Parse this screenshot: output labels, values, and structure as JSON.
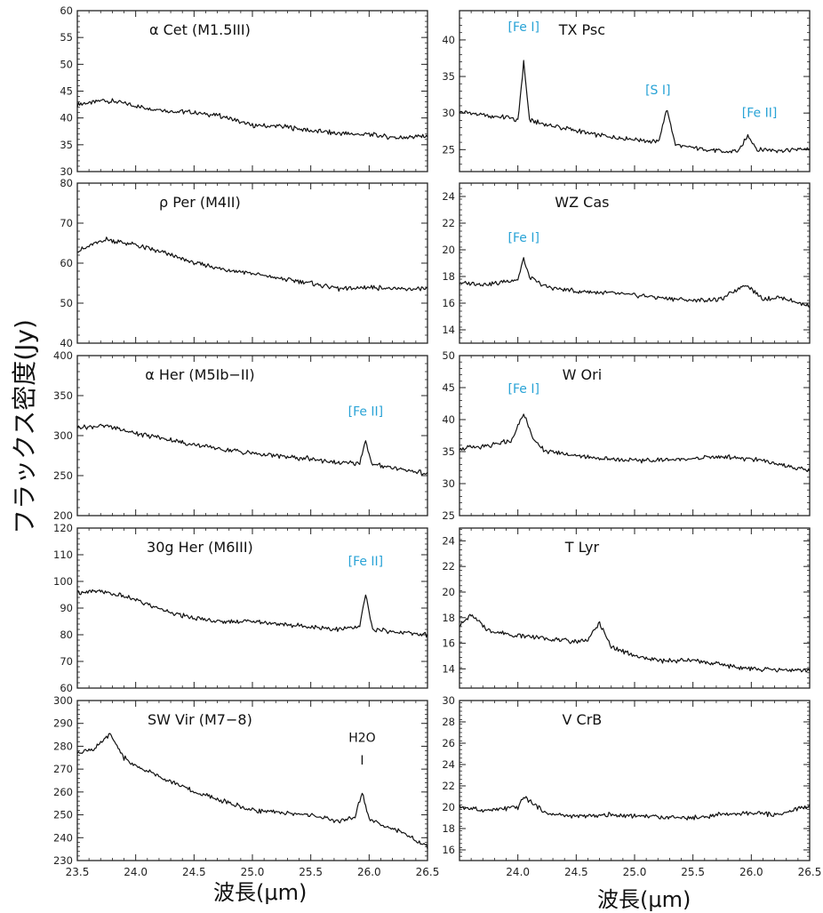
{
  "ylabel": "フラックス密度(Jy)",
  "xlabel_left": "波長(μm)",
  "xlabel_right": "波長(μm)",
  "colors": {
    "line": "#111111",
    "annotation": "#29a3d6",
    "axis": "#222222"
  },
  "chart_data": [
    {
      "type": "line",
      "title": "α Cet (M1.5III)",
      "xlim": [
        23.5,
        26.5
      ],
      "ylim": [
        30,
        60
      ],
      "yticks": [
        30,
        35,
        40,
        45,
        50,
        55,
        60
      ],
      "grid": false,
      "series": [
        {
          "x": [
            23.5,
            23.75,
            24.0,
            24.25,
            24.5,
            24.75,
            25.0,
            25.25,
            25.5,
            25.75,
            26.0,
            26.25,
            26.5
          ],
          "y": [
            42.5,
            43.3,
            42.2,
            41.4,
            41.0,
            40.3,
            38.6,
            38.4,
            37.6,
            37.1,
            36.9,
            36.3,
            36.7
          ]
        }
      ],
      "annotations": []
    },
    {
      "type": "line",
      "title": "TX Psc",
      "xlim": [
        23.5,
        26.5
      ],
      "ylim": [
        22,
        44
      ],
      "yticks": [
        25,
        30,
        35,
        40
      ],
      "grid": false,
      "series": [
        {
          "x": [
            23.5,
            23.75,
            23.95,
            24.0,
            24.05,
            24.1,
            24.25,
            24.5,
            24.75,
            25.0,
            25.2,
            25.28,
            25.35,
            25.5,
            25.75,
            25.9,
            25.97,
            26.05,
            26.25,
            26.5
          ],
          "y": [
            30.2,
            29.6,
            29.3,
            28.8,
            37.0,
            29.0,
            28.4,
            27.6,
            26.8,
            26.4,
            26.0,
            30.5,
            25.6,
            25.3,
            24.7,
            24.9,
            27.0,
            25.0,
            24.9,
            25.1
          ]
        }
      ],
      "annotations": [
        {
          "text": "[Fe I]",
          "x": 24.05,
          "y": 41.2
        },
        {
          "text": "[S I]",
          "x": 25.2,
          "y": 32.6
        },
        {
          "text": "[Fe II]",
          "x": 26.07,
          "y": 29.5
        }
      ]
    },
    {
      "type": "line",
      "title": "ρ Per (M4II)",
      "xlim": [
        23.5,
        26.5
      ],
      "ylim": [
        40,
        80
      ],
      "yticks": [
        40,
        50,
        60,
        70,
        80
      ],
      "grid": false,
      "series": [
        {
          "x": [
            23.5,
            23.75,
            24.0,
            24.25,
            24.5,
            24.75,
            25.0,
            25.25,
            25.5,
            25.75,
            26.0,
            26.25,
            26.5
          ],
          "y": [
            63.0,
            66.0,
            64.5,
            62.5,
            60.0,
            58.5,
            57.5,
            56.0,
            55.0,
            53.5,
            54.0,
            53.5,
            53.5
          ]
        }
      ],
      "annotations": []
    },
    {
      "type": "line",
      "title": "WZ Cas",
      "xlim": [
        23.5,
        26.5
      ],
      "ylim": [
        13,
        25
      ],
      "yticks": [
        14,
        16,
        18,
        20,
        22,
        24
      ],
      "grid": false,
      "series": [
        {
          "x": [
            23.5,
            23.75,
            24.0,
            24.05,
            24.1,
            24.25,
            24.5,
            24.75,
            25.0,
            25.25,
            25.5,
            25.75,
            25.95,
            26.1,
            26.25,
            26.5
          ],
          "y": [
            17.5,
            17.4,
            17.8,
            19.3,
            17.9,
            17.2,
            16.9,
            16.8,
            16.6,
            16.4,
            16.2,
            16.3,
            17.4,
            16.3,
            16.4,
            15.8
          ]
        }
      ],
      "annotations": [
        {
          "text": "[Fe I]",
          "x": 24.05,
          "y": 20.6
        }
      ]
    },
    {
      "type": "line",
      "title": "α Her (M5Ib−II)",
      "xlim": [
        23.5,
        26.5
      ],
      "ylim": [
        200,
        400
      ],
      "yticks": [
        200,
        250,
        300,
        350,
        400
      ],
      "grid": false,
      "series": [
        {
          "x": [
            23.5,
            23.75,
            24.0,
            24.25,
            24.5,
            24.75,
            25.0,
            25.25,
            25.5,
            25.75,
            25.92,
            25.97,
            26.02,
            26.25,
            26.5
          ],
          "y": [
            310,
            312,
            303,
            296,
            288,
            283,
            278,
            274,
            271,
            266,
            265,
            295,
            264,
            259,
            252
          ]
        }
      ],
      "annotations": [
        {
          "text": "[Fe II]",
          "x": 25.97,
          "y": 325
        }
      ]
    },
    {
      "type": "line",
      "title": "W Ori",
      "xlim": [
        23.5,
        26.5
      ],
      "ylim": [
        25,
        50
      ],
      "yticks": [
        25,
        30,
        35,
        40,
        45,
        50
      ],
      "grid": false,
      "series": [
        {
          "x": [
            23.5,
            23.75,
            23.95,
            24.05,
            24.15,
            24.25,
            24.5,
            24.75,
            25.0,
            25.25,
            25.5,
            25.75,
            26.0,
            26.25,
            26.5
          ],
          "y": [
            35.5,
            35.8,
            36.8,
            41.0,
            36.3,
            35.0,
            34.4,
            33.9,
            33.6,
            33.7,
            33.9,
            34.2,
            33.8,
            33.0,
            32.0
          ]
        }
      ],
      "annotations": [
        {
          "text": "[Fe I]",
          "x": 24.05,
          "y": 44.2
        }
      ]
    },
    {
      "type": "line",
      "title": "30g Her (M6III)",
      "xlim": [
        23.5,
        26.5
      ],
      "ylim": [
        60,
        120
      ],
      "yticks": [
        60,
        70,
        80,
        90,
        100,
        110,
        120
      ],
      "grid": false,
      "series": [
        {
          "x": [
            23.5,
            23.75,
            24.0,
            24.25,
            24.5,
            24.75,
            25.0,
            25.25,
            25.5,
            25.75,
            25.92,
            25.97,
            26.03,
            26.25,
            26.5
          ],
          "y": [
            96,
            96,
            93,
            89,
            86,
            85,
            85,
            84,
            83,
            82,
            83,
            95,
            82,
            81,
            80
          ]
        }
      ],
      "annotations": [
        {
          "text": "[Fe II]",
          "x": 25.97,
          "y": 106
        }
      ]
    },
    {
      "type": "line",
      "title": "T Lyr",
      "xlim": [
        23.5,
        26.5
      ],
      "ylim": [
        12.5,
        25
      ],
      "yticks": [
        14,
        16,
        18,
        20,
        22,
        24
      ],
      "grid": false,
      "series": [
        {
          "x": [
            23.5,
            23.6,
            23.75,
            24.0,
            24.25,
            24.5,
            24.6,
            24.7,
            24.8,
            25.0,
            25.25,
            25.5,
            25.75,
            26.0,
            26.25,
            26.5
          ],
          "y": [
            17.4,
            18.2,
            17.0,
            16.6,
            16.4,
            16.1,
            16.3,
            17.6,
            15.7,
            15.0,
            14.6,
            14.7,
            14.3,
            14.0,
            13.9,
            13.9
          ]
        }
      ],
      "annotations": []
    },
    {
      "type": "line",
      "title": "SW Vir (M7−8)",
      "xlim": [
        23.5,
        26.5
      ],
      "ylim": [
        230,
        300
      ],
      "yticks": [
        230,
        240,
        250,
        260,
        270,
        280,
        290,
        300
      ],
      "grid": false,
      "series": [
        {
          "x": [
            23.5,
            23.65,
            23.78,
            23.9,
            24.0,
            24.25,
            24.5,
            24.75,
            25.0,
            25.25,
            25.5,
            25.75,
            25.88,
            25.94,
            26.0,
            26.25,
            26.5
          ],
          "y": [
            277,
            279,
            285,
            275,
            271,
            266,
            260,
            256,
            252,
            251,
            250,
            247,
            249,
            260,
            248,
            243,
            236
          ]
        }
      ],
      "annotations": [
        {
          "text": "H2O",
          "x": 25.94,
          "y": 282
        },
        {
          "text": "I",
          "x": 25.94,
          "y": 272
        }
      ]
    },
    {
      "type": "line",
      "title": "V CrB",
      "xlim": [
        23.5,
        26.5
      ],
      "ylim": [
        15,
        30
      ],
      "yticks": [
        16,
        18,
        20,
        22,
        24,
        26,
        28,
        30
      ],
      "grid": false,
      "series": [
        {
          "x": [
            23.5,
            23.75,
            24.0,
            24.05,
            24.25,
            24.5,
            24.75,
            25.0,
            25.25,
            25.5,
            25.75,
            26.0,
            26.25,
            26.5
          ],
          "y": [
            20.0,
            19.7,
            20.0,
            21.0,
            19.4,
            19.1,
            19.3,
            19.2,
            19.1,
            19.0,
            19.3,
            19.4,
            19.3,
            20.2
          ]
        }
      ],
      "annotations": []
    }
  ],
  "xticks": [
    23.5,
    24.0,
    24.5,
    25.0,
    25.5,
    26.0,
    26.5
  ],
  "xticks_right": [
    24.0,
    24.5,
    25.0,
    25.5,
    26.0,
    26.5
  ]
}
